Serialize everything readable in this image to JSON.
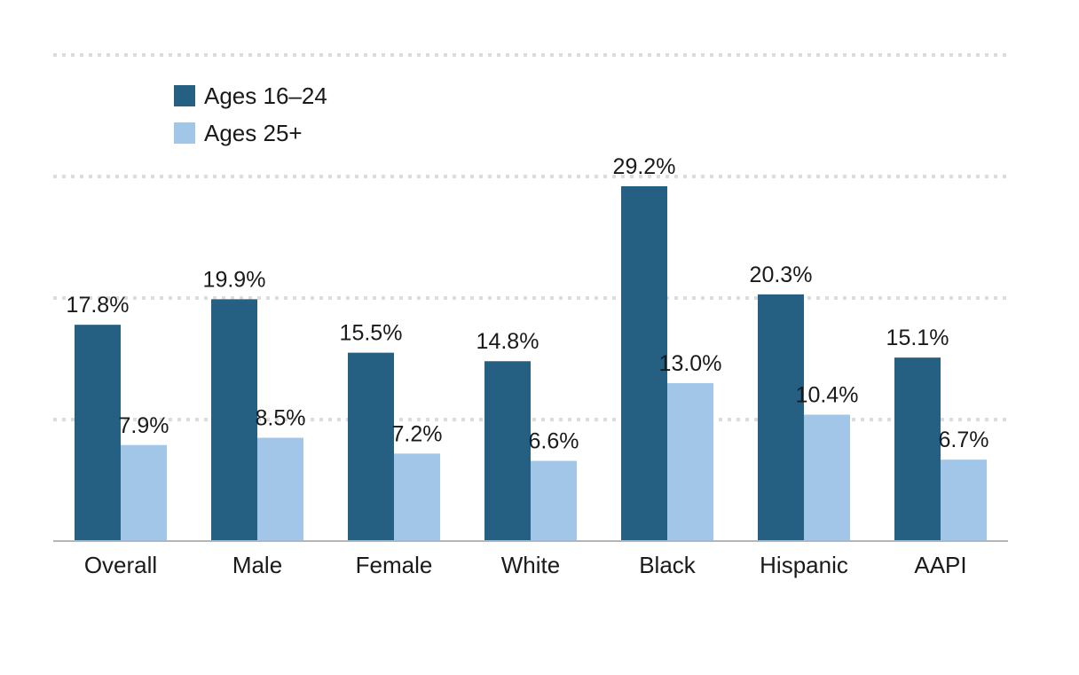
{
  "chart_data": {
    "type": "bar",
    "categories": [
      "Overall",
      "Male",
      "Female",
      "White",
      "Black",
      "Hispanic",
      "AAPI"
    ],
    "series": [
      {
        "name": "Ages 16–24",
        "color": "#256083",
        "values": [
          17.8,
          19.9,
          15.5,
          14.8,
          29.2,
          20.3,
          15.1
        ],
        "labels": [
          "17.8%",
          "19.9%",
          "15.5%",
          "14.8%",
          "29.2%",
          "20.3%",
          "15.1%"
        ]
      },
      {
        "name": "Ages 25+",
        "color": "#a2c6e8",
        "values": [
          7.9,
          8.5,
          7.2,
          6.6,
          13.0,
          10.4,
          6.7
        ],
        "labels": [
          "7.9%",
          "8.5%",
          "7.2%",
          "6.6%",
          "13.0%",
          "10.4%",
          "6.7%"
        ]
      }
    ],
    "ylim": [
      0,
      40
    ],
    "grid": true,
    "legend_position": "top-left",
    "title": "",
    "xlabel": "",
    "ylabel": ""
  }
}
